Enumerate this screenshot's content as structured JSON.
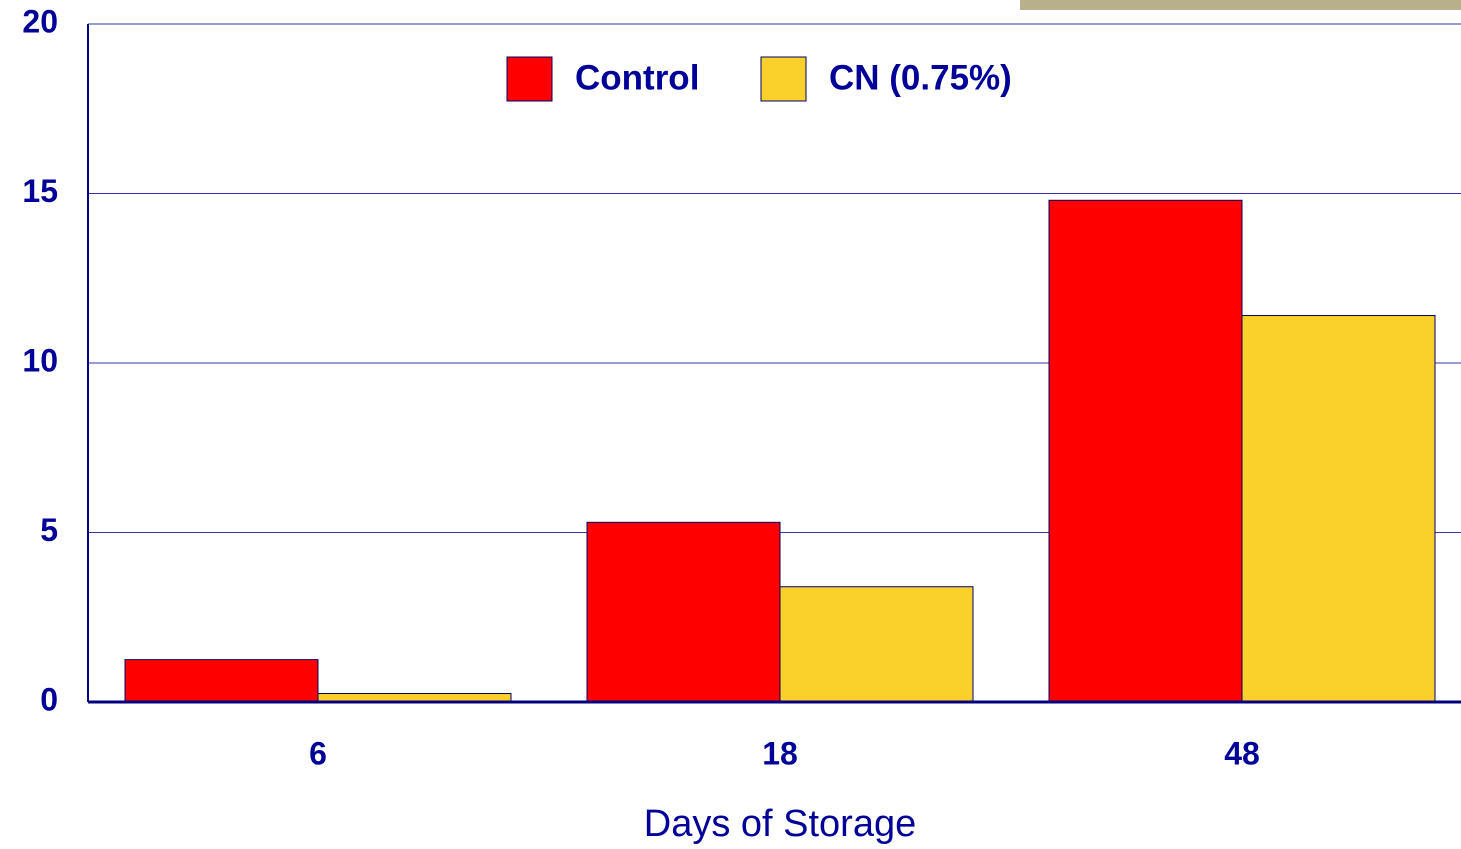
{
  "chart_data": {
    "type": "bar",
    "x_label": "Days of Storage",
    "categories": [
      "6",
      "18",
      "48"
    ],
    "series": [
      {
        "name": "Control",
        "color": "#ff0000",
        "values": [
          1.25,
          5.3,
          14.8
        ]
      },
      {
        "name": "CN (0.75%)",
        "color": "#fad02a",
        "values": [
          0.25,
          3.4,
          11.4
        ]
      }
    ],
    "ylim": [
      0,
      20
    ],
    "yticks": [
      0,
      5,
      10,
      15,
      20
    ],
    "grid": true
  }
}
